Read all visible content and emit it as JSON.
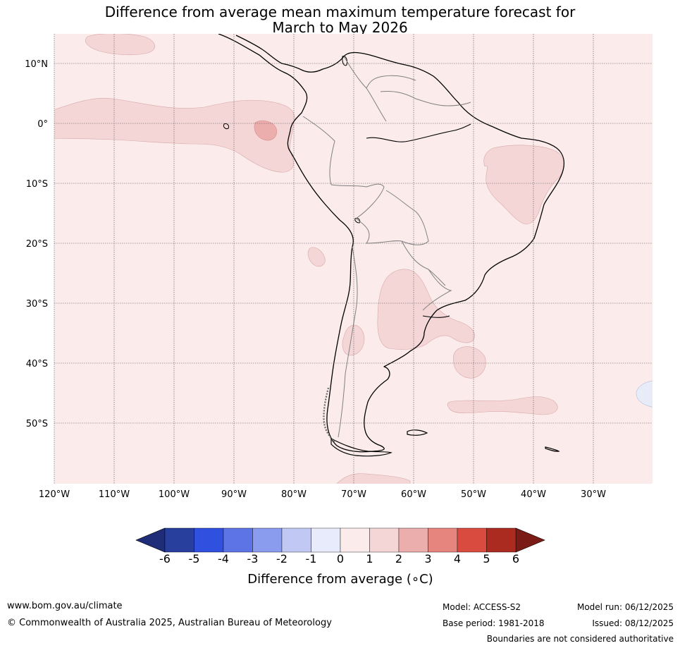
{
  "title": {
    "line1": "Difference from average mean maximum temperature forecast for",
    "line2": "March to May 2026"
  },
  "map": {
    "lat_labels": [
      "10°N",
      "0°",
      "10°S",
      "20°S",
      "30°S",
      "40°S",
      "50°S"
    ],
    "lon_labels": [
      "120°W",
      "110°W",
      "100°W",
      "90°W",
      "80°W",
      "70°W",
      "60°W",
      "50°W",
      "40°W",
      "30°W"
    ],
    "background_anomaly_range": "0 to 1",
    "colors": {
      "anomaly_0_1": "#fbebeb",
      "anomaly_1_2": "#f4d6d6",
      "anomaly_2_3": "#ecadad",
      "anomaly_minus1_0": "#e8ecf8",
      "coast": "#000000",
      "border": "#808080"
    }
  },
  "colorbar": {
    "tick_labels": [
      "-6",
      "-5",
      "-4",
      "-3",
      "-2",
      "-1",
      "0",
      "1",
      "2",
      "3",
      "4",
      "5",
      "6"
    ],
    "bin_colors": [
      "#283f9e",
      "#3050e0",
      "#5c74e6",
      "#8a9cee",
      "#c1c8f4",
      "#e8ebfb",
      "#fbebeb",
      "#f4d6d6",
      "#ecadad",
      "#e6847e",
      "#d94b3f",
      "#ab2b21"
    ],
    "low_extend_color": "#1f2c78",
    "high_extend_color": "#7a1b16",
    "label": "Difference from average (∘C)"
  },
  "footer": {
    "website": "www.bom.gov.au/climate",
    "copyright": "© Commonwealth of Australia 2025, Australian Bureau of Meteorology",
    "model": "Model: ACCESS-S2",
    "base_period": "Base period: 1981-2018",
    "model_run": "Model run: 06/12/2025",
    "issued": "Issued: 08/12/2025",
    "disclaimer": "Boundaries are not considered authoritative"
  }
}
